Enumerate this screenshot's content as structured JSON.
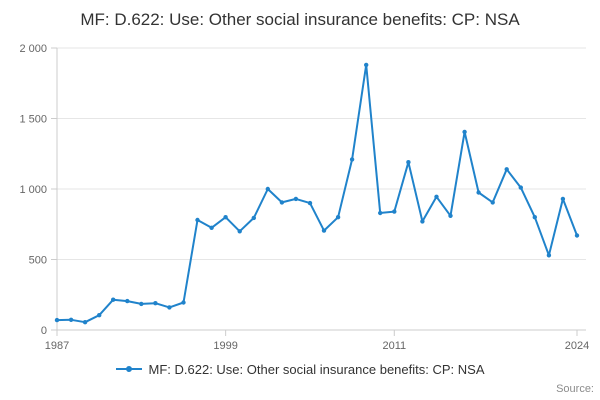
{
  "chart": {
    "title": "MF: D.622: Use: Other social insurance benefits: CP: NSA",
    "legend_label": "MF: D.622: Use: Other social insurance benefits: CP: NSA",
    "source_label": "Source:"
  },
  "chart_data": {
    "type": "line",
    "title": "MF: D.622: Use: Other social insurance benefits: CP: NSA",
    "xlabel": "",
    "ylabel": "",
    "x": [
      1987,
      1988,
      1989,
      1990,
      1991,
      1992,
      1993,
      1994,
      1995,
      1996,
      1997,
      1998,
      1999,
      2000,
      2001,
      2002,
      2003,
      2004,
      2005,
      2006,
      2007,
      2008,
      2009,
      2010,
      2011,
      2012,
      2013,
      2014,
      2015,
      2016,
      2017,
      2018,
      2019,
      2020,
      2021,
      2022,
      2023,
      2024
    ],
    "values": [
      70,
      72,
      55,
      105,
      215,
      205,
      185,
      190,
      160,
      195,
      780,
      725,
      800,
      700,
      795,
      1000,
      905,
      930,
      900,
      705,
      800,
      1210,
      1880,
      830,
      840,
      1190,
      770,
      945,
      810,
      1405,
      975,
      905,
      1140,
      1010,
      800,
      530,
      930,
      670
    ],
    "ylim": [
      0,
      2000
    ],
    "yticks": {
      "values": [
        0,
        500,
        1000,
        1500,
        2000
      ],
      "labels": [
        "0",
        "500",
        "1 000",
        "1 500",
        "2 000"
      ]
    },
    "xticks": {
      "values": [
        1987,
        1999,
        2011,
        2024
      ],
      "labels": [
        "1987",
        "1999",
        "2011",
        "2024"
      ]
    },
    "grid": true,
    "legend_position": "bottom",
    "line_color": "#2083cb",
    "grid_color": "#e6e6e6",
    "axis_color": "#cccccc",
    "tick_label_color": "#666666",
    "title_color": "#333333",
    "marker": "circle"
  }
}
